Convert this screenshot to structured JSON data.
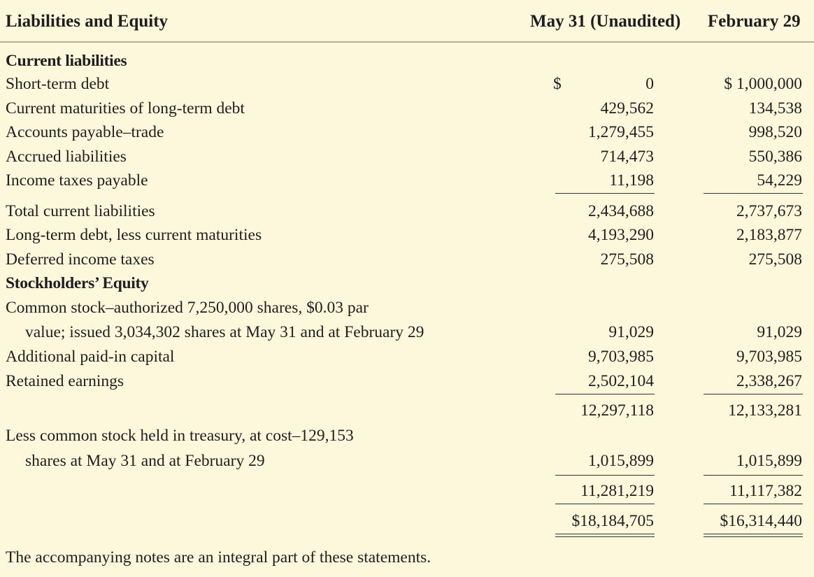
{
  "header": {
    "title": "Liabilities and Equity",
    "col1": "May 31 (Unaudited)",
    "col2": "February 29"
  },
  "rows": {
    "current_liabilities": {
      "label": "Current liabilities"
    },
    "short_term_debt": {
      "label": "Short-term debt",
      "dollar1": "$",
      "v1": "0",
      "v2": "$ 1,000,000"
    },
    "current_maturities": {
      "label": "Current maturities of long-term debt",
      "v1": "429,562",
      "v2": "134,538"
    },
    "accounts_payable": {
      "label": "Accounts payable–trade",
      "v1": "1,279,455",
      "v2": "998,520"
    },
    "accrued_liabilities": {
      "label": "Accrued liabilities",
      "v1": "714,473",
      "v2": "550,386"
    },
    "income_taxes_payable": {
      "label": "Income taxes payable",
      "v1": "11,198",
      "v2": "54,229"
    },
    "total_current_liabilities": {
      "label": "Total current liabilities",
      "v1": "2,434,688",
      "v2": "2,737,673"
    },
    "long_term_debt": {
      "label": "Long-term debt, less current maturities",
      "v1": "4,193,290",
      "v2": "2,183,877"
    },
    "deferred_income_taxes": {
      "label": "Deferred income taxes",
      "v1": "275,508",
      "v2": "275,508"
    },
    "stockholders_equity": {
      "label": "Stockholders’ Equity"
    },
    "common_stock_line1": {
      "label": "Common stock–authorized 7,250,000 shares, $0.03 par"
    },
    "common_stock_line2": {
      "label": "value; issued 3,034,302 shares at May 31 and at February 29",
      "v1": "91,029",
      "v2": "91,029"
    },
    "additional_paid_in": {
      "label": "Additional paid-in capital",
      "v1": "9,703,985",
      "v2": "9,703,985"
    },
    "retained_earnings": {
      "label": "Retained earnings",
      "v1": "2,502,104",
      "v2": "2,338,267"
    },
    "subtotal": {
      "v1": "12,297,118",
      "v2": "12,133,281"
    },
    "treasury_line1": {
      "label": "Less common stock held in treasury, at cost–129,153"
    },
    "treasury_line2": {
      "label": "shares at May 31 and at February 29",
      "v1": "1,015,899",
      "v2": "1,015,899"
    },
    "total_equity": {
      "v1": "11,281,219",
      "v2": "11,117,382"
    },
    "grand_total": {
      "v1": "$18,184,705",
      "v2": "$16,314,440"
    }
  },
  "footnote": "The accompanying notes are an integral part of these statements."
}
